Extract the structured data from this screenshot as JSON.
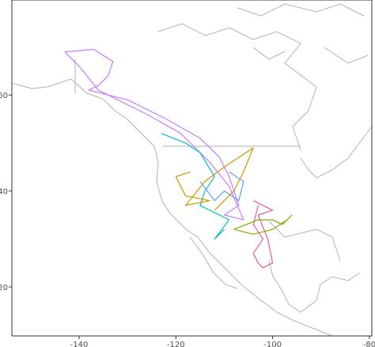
{
  "chart_data": {
    "type": "line",
    "xlim": [
      -153.9,
      -79.5
    ],
    "ylim": [
      9.8,
      79.8
    ],
    "xticks": [
      -140,
      -120,
      -100,
      -80
    ],
    "yticks": [
      20,
      40,
      60
    ],
    "series": [
      {
        "color": "#c77cff",
        "x": [
          -143,
          -137,
          -133,
          -134,
          -136,
          -138,
          -130,
          -122,
          -115,
          -111,
          -109,
          -108,
          -107,
          -110,
          -106,
          -109,
          -113,
          -119,
          -126,
          -132,
          -136,
          -140,
          -143
        ],
        "values": [
          69,
          69.5,
          67,
          64,
          62,
          61,
          59,
          55,
          51,
          47,
          43,
          40,
          37,
          35,
          34,
          41,
          46,
          52,
          56,
          59,
          61,
          66,
          69
        ]
      },
      {
        "color": "#00bfc4",
        "x": [
          -123,
          -118,
          -115,
          -112,
          -114,
          -115,
          -111,
          -109,
          -112,
          -110
        ],
        "values": [
          52,
          50,
          48,
          43,
          40,
          37,
          35,
          34,
          30,
          32
        ]
      },
      {
        "color": "#cd9600",
        "x": [
          -117,
          -120,
          -118,
          -113,
          -118,
          -114,
          -110,
          -104,
          -106,
          -108,
          -112
        ],
        "values": [
          44,
          43,
          39,
          38,
          37,
          42,
          45,
          49,
          44,
          40,
          36
        ]
      },
      {
        "color": "#e85a9b",
        "x": [
          -103,
          -104,
          -102,
          -104,
          -103,
          -102,
          -100,
          -101,
          -103,
          -100,
          -104
        ],
        "values": [
          37,
          33,
          30,
          27,
          25,
          24,
          25,
          30,
          35,
          36,
          38
        ]
      },
      {
        "color": "#7cae00",
        "x": [
          -108,
          -103,
          -100,
          -98,
          -96,
          -97,
          -100,
          -104,
          -108
        ],
        "values": [
          32,
          34,
          34,
          33,
          35,
          34,
          32,
          31,
          32
        ]
      },
      {
        "color": "#619cff",
        "x": [
          -115,
          -112,
          -110,
          -107,
          -106,
          -109
        ],
        "values": [
          42,
          38,
          40,
          38,
          42,
          44
        ]
      }
    ]
  }
}
